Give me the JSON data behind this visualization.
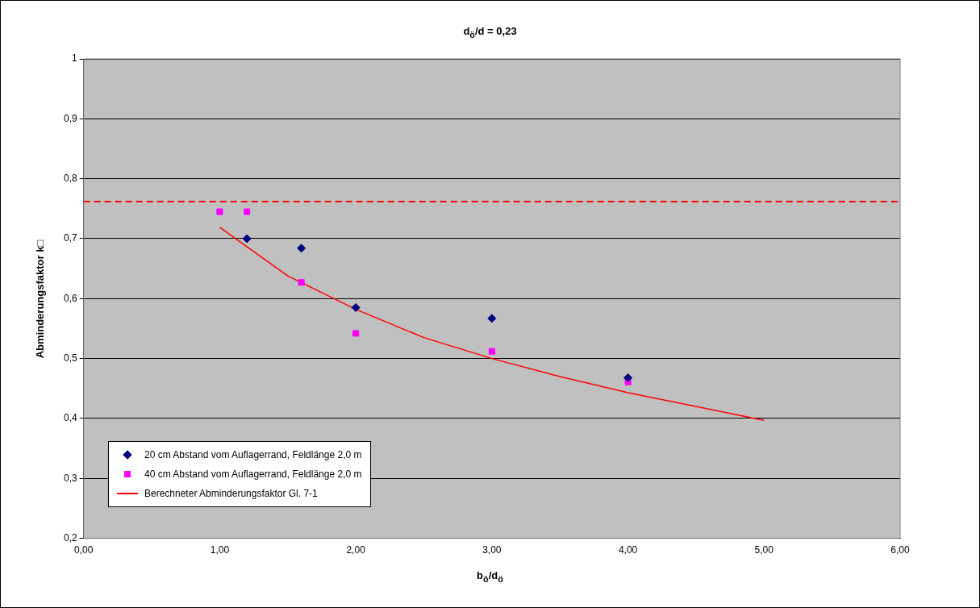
{
  "chart_data": {
    "type": "scatter",
    "title": "d$_{ö}$/d = 0,23",
    "xlabel": "b$_{ö}$/d$_{ö}$",
    "ylabel": "Abminderungsfaktor k□",
    "series": [
      {
        "name": "20 cm Abstand vom Auflagerrand, Feldlänge 2,0 m",
        "type": "scatter",
        "marker": "diamond",
        "color": "#000080",
        "x": [
          1.2,
          1.6,
          2.0,
          3.0,
          4.0
        ],
        "values": [
          0.7,
          0.684,
          0.585,
          0.567,
          0.468
        ]
      },
      {
        "name": "40 cm Abstand vom Auflagerrand, Feldlänge 2,0 m",
        "type": "scatter",
        "marker": "square",
        "color": "#ff00ff",
        "x": [
          1.0,
          1.2,
          1.6,
          2.0,
          3.0,
          4.0
        ],
        "values": [
          0.745,
          0.745,
          0.627,
          0.542,
          0.512,
          0.461
        ]
      },
      {
        "name": "Berechneter Abminderungsfaktor  Gl. 7-1",
        "type": "line",
        "marker": "none",
        "color": "#ff0000",
        "x": [
          1.0,
          1.5,
          2.0,
          2.5,
          3.0,
          3.5,
          4.0,
          5.0
        ],
        "values": [
          0.719,
          0.638,
          0.582,
          0.535,
          0.5,
          0.47,
          0.443,
          0.397
        ]
      }
    ],
    "xlim": [
      0,
      6
    ],
    "xticks": [
      {
        "value": 0,
        "label": "0,00"
      },
      {
        "value": 1,
        "label": "1,00"
      },
      {
        "value": 2,
        "label": "2,00"
      },
      {
        "value": 3,
        "label": "3,00"
      },
      {
        "value": 4,
        "label": "4,00"
      },
      {
        "value": 5,
        "label": "5,00"
      },
      {
        "value": 6,
        "label": "6,00"
      }
    ],
    "ylim": [
      0.2,
      1
    ],
    "yticks": [
      {
        "value": 0.2,
        "label": "0,2"
      },
      {
        "value": 0.3,
        "label": "0,3"
      },
      {
        "value": 0.4,
        "label": "0,4"
      },
      {
        "value": 0.5,
        "label": "0,5"
      },
      {
        "value": 0.6,
        "label": "0,6"
      },
      {
        "value": 0.7,
        "label": "0,7"
      },
      {
        "value": 0.8,
        "label": "0,8"
      },
      {
        "value": 0.9,
        "label": "0,9"
      },
      {
        "value": 1,
        "label": "1"
      }
    ],
    "ref_lines": [
      {
        "axis": "y",
        "value": 0.762,
        "color": "#ff0000",
        "line_style": "dashed"
      }
    ],
    "grid": "y",
    "legend": "bottom left"
  }
}
